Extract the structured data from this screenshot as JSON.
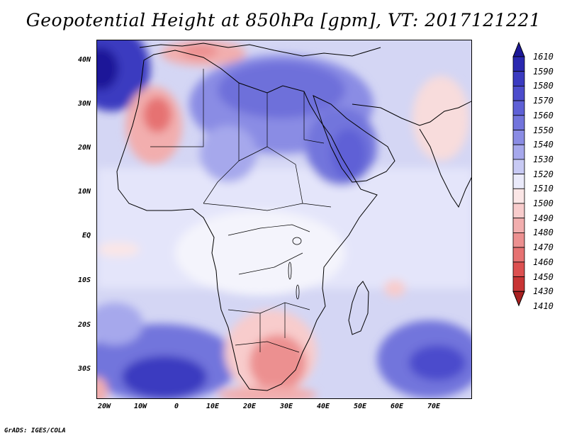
{
  "title": "Geopotential Height at 850hPa [gpm], VT: 2017121221",
  "footer": "GrADS: IGES/COLA",
  "map": {
    "lat_labels": [
      "40N",
      "30N",
      "20N",
      "10N",
      "EQ",
      "10S",
      "20S",
      "30S"
    ],
    "lon_labels": [
      "20W",
      "10W",
      "0",
      "10E",
      "20E",
      "30E",
      "40E",
      "50E",
      "60E",
      "70E"
    ]
  },
  "colorbar": {
    "levels": [
      "1610",
      "1590",
      "1580",
      "1570",
      "1560",
      "1550",
      "1540",
      "1530",
      "1520",
      "1510",
      "1500",
      "1490",
      "1480",
      "1470",
      "1460",
      "1450",
      "1430",
      "1410"
    ],
    "colors": [
      "#1c1898",
      "#2a28b0",
      "#3a3ac0",
      "#4c4ccc",
      "#5e60d6",
      "#7274dc",
      "#8a8ce4",
      "#a6a8ec",
      "#c8caf4",
      "#eaeafa",
      "#fbe6e6",
      "#f8cccc",
      "#f2aeae",
      "#ec9090",
      "#e67272",
      "#dc5050",
      "#c83434",
      "#a82020"
    ]
  },
  "colors": {
    "high": "#3a3ac0",
    "low": "#c83434",
    "neutral": "#ffffff"
  }
}
